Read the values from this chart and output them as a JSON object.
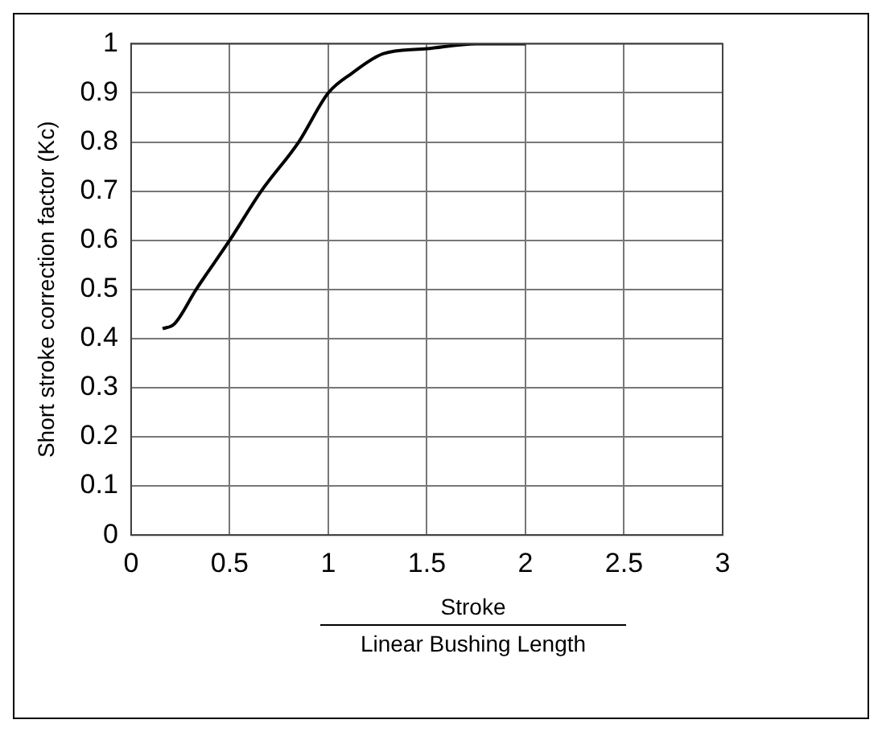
{
  "chart_data": {
    "type": "line",
    "xlabel": "Stroke",
    "annotations": [
      "Linear Bushing Length"
    ],
    "ylabel": "Short stroke correction factor (Kc)",
    "series": [
      {
        "color": "#000000",
        "x": [
          0.16,
          0.22,
          0.33,
          0.5,
          0.66,
          0.85,
          1.0,
          1.12,
          1.28,
          1.5,
          1.75,
          2.0
        ],
        "values": [
          0.42,
          0.43,
          0.5,
          0.6,
          0.7,
          0.8,
          0.9,
          0.94,
          0.98,
          0.99,
          1.0,
          1.0
        ]
      }
    ],
    "xlim": [
      0,
      3
    ],
    "xticks": [
      0,
      0.5,
      1,
      1.5,
      2,
      2.5,
      3
    ],
    "ylim": [
      0,
      1
    ],
    "yticks": [
      0,
      0.1,
      0.2,
      0.3,
      0.4,
      0.5,
      0.6,
      0.7,
      0.8,
      0.9,
      1
    ],
    "grid": true,
    "legend": false,
    "marker": "none",
    "line_style": "solid"
  }
}
